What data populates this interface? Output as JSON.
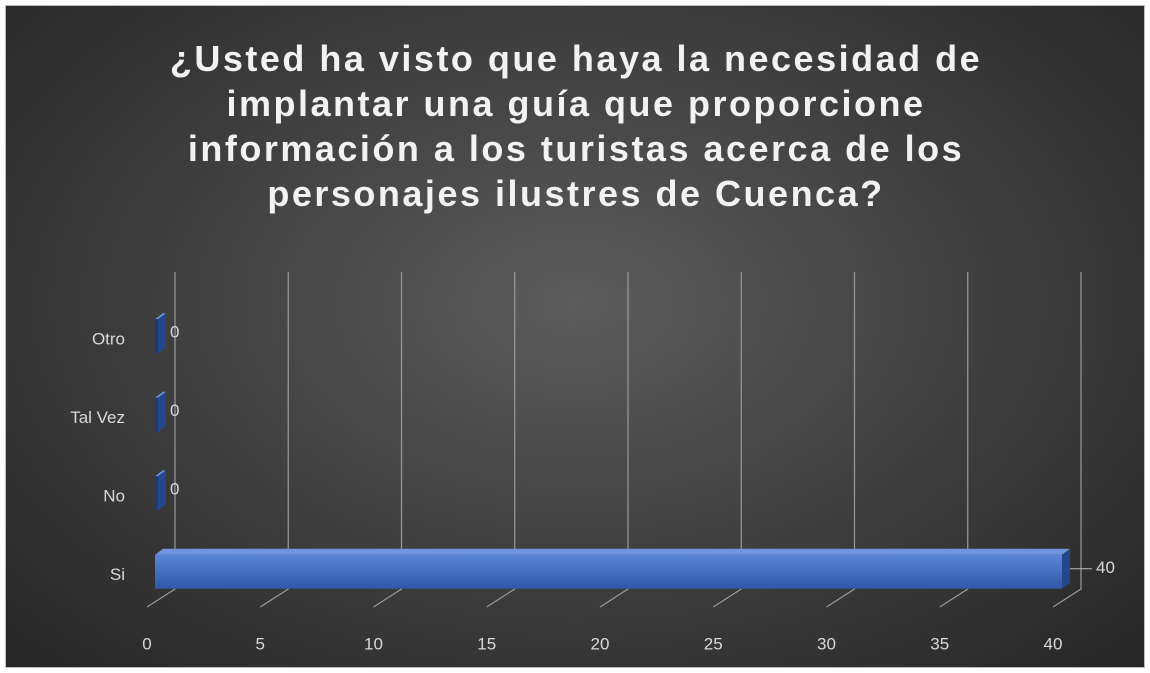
{
  "chart_data": {
    "type": "bar3d",
    "orientation": "horizontal",
    "title": "¿Usted ha visto que haya la necesidad de implantar una guía que proporcione información a los turistas acerca de los personajes ilustres de Cuenca?",
    "categories": [
      "Si",
      "No",
      "Tal Vez",
      "Otro"
    ],
    "values": [
      40,
      0,
      0,
      0
    ],
    "color": "#4472c4",
    "xlim": [
      0,
      40
    ],
    "xticks": [
      0,
      5,
      10,
      15,
      20,
      25,
      30,
      35,
      40
    ],
    "grid": true
  }
}
